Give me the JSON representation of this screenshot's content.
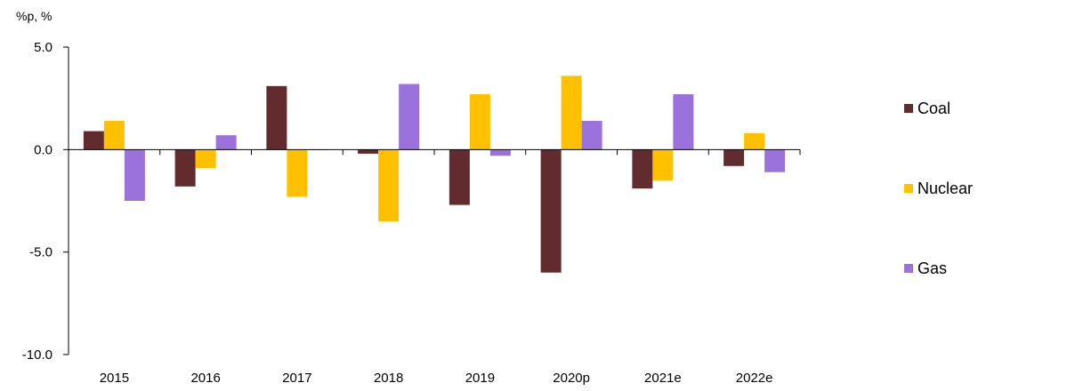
{
  "chart_data": {
    "type": "bar",
    "unit_label": "%p, %",
    "categories": [
      "2015",
      "2016",
      "2017",
      "2018",
      "2019",
      "2020p",
      "2021e",
      "2022e"
    ],
    "series": [
      {
        "name": "Coal",
        "color": "#622c2e",
        "values": [
          0.9,
          -1.8,
          3.1,
          -0.2,
          -2.7,
          -6.0,
          -1.9,
          -0.8
        ]
      },
      {
        "name": "Nuclear",
        "color": "#ffc000",
        "values": [
          1.4,
          -0.9,
          -2.3,
          -3.5,
          2.7,
          3.6,
          -1.5,
          0.8
        ]
      },
      {
        "name": "Gas",
        "color": "#9b72dc",
        "values": [
          -2.5,
          0.7,
          0.0,
          3.2,
          -0.3,
          1.4,
          2.7,
          -1.1
        ]
      }
    ],
    "y_ticks": [
      "5.0",
      "0.0",
      "-5.0",
      "-10.0"
    ],
    "ylim": [
      -10,
      5
    ],
    "legend_position": "right",
    "grid": false
  }
}
